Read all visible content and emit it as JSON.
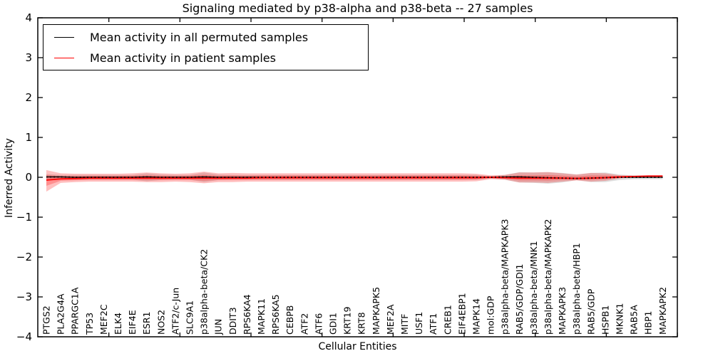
{
  "title": "Signaling mediated by p38-alpha and p38-beta -- 27 samples",
  "legend": {
    "items": [
      {
        "label": "Mean activity in all permuted samples",
        "color": "#000000"
      },
      {
        "label": "Mean activity in patient samples",
        "color": "#ff0000"
      }
    ]
  },
  "axes": {
    "xlabel": "Cellular Entities",
    "ylabel": "Inferred Activity",
    "yticklabels": [
      "4",
      "3",
      "2",
      "1",
      "0",
      "−1",
      "−2",
      "−3",
      "−4"
    ],
    "ylim": [
      -4,
      4
    ]
  },
  "chart_data": {
    "type": "line",
    "title": "Signaling mediated by p38-alpha and p38-beta -- 27 samples",
    "xlabel": "Cellular Entities",
    "ylabel": "Inferred Activity",
    "ylim": [
      -4,
      4
    ],
    "grid": false,
    "legend_position": "upper left",
    "categories": [
      "PTGS2",
      "PLA2G4A",
      "PPARGC1A",
      "TP53",
      "MEF2C",
      "ELK4",
      "EIF4E",
      "ESR1",
      "NOS2",
      "ATF2/c-Jun",
      "SLC9A1",
      "p38alpha-beta/CK2",
      "JUN",
      "DDIT3",
      "RPS6KA4",
      "MAPK11",
      "RPS6KA5",
      "CEBPB",
      "ATF2",
      "ATF6",
      "GDI1",
      "KRT19",
      "KRT8",
      "MAPKAPK5",
      "MEF2A",
      "MITF",
      "USF1",
      "ATF1",
      "CREB1",
      "EIF4EBP1",
      "MAPK14",
      "mol:GDP",
      "p38alpha-beta/MAPKAPK3",
      "RAB5/GDP/GDI1",
      "p38alpha-beta/MNK1",
      "p38alpha-beta/MAPKAPK2",
      "MAPKAPK3",
      "p38alpha-beta/HBP1",
      "RAB5/GDP",
      "HSPB1",
      "MKNK1",
      "RAB5A",
      "HBP1",
      "MAPKAPK2"
    ],
    "series": [
      {
        "name": "Mean activity in all permuted samples",
        "color": "#000000",
        "values": [
          0.01,
          0.01,
          0,
          0,
          0,
          0,
          0,
          0.01,
          0,
          0,
          0,
          0.01,
          0,
          0,
          0,
          0,
          0,
          0,
          0,
          0,
          0,
          0,
          0,
          0,
          0,
          0,
          0,
          0,
          0,
          0,
          0,
          0,
          0.01,
          0.01,
          0,
          -0.01,
          -0.02,
          -0.03,
          -0.02,
          -0.01,
          0,
          0,
          0,
          0
        ]
      },
      {
        "name": "Mean activity in patient samples",
        "color": "#ff0000",
        "values": [
          -0.07,
          -0.04,
          -0.03,
          -0.02,
          -0.02,
          -0.02,
          -0.02,
          -0.02,
          -0.02,
          -0.02,
          -0.02,
          -0.02,
          -0.02,
          -0.02,
          -0.02,
          -0.01,
          -0.01,
          -0.01,
          -0.01,
          -0.01,
          -0.01,
          -0.01,
          -0.01,
          -0.01,
          -0.01,
          -0.01,
          -0.01,
          -0.01,
          -0.01,
          -0.01,
          -0.01,
          0,
          -0.01,
          -0.02,
          -0.02,
          -0.02,
          -0.02,
          -0.03,
          -0.02,
          -0.01,
          0.01,
          0.02,
          0.03,
          0.03
        ]
      }
    ],
    "bands": [
      {
        "name": "permuted-sample-range",
        "color": "#999999",
        "opacity": 0.32,
        "upper": [
          0.08,
          0.06,
          0.06,
          0.06,
          0.06,
          0.06,
          0.06,
          0.1,
          0.07,
          0.06,
          0.06,
          0.12,
          0.07,
          0.06,
          0.06,
          0.06,
          0.06,
          0.06,
          0.06,
          0.06,
          0.06,
          0.06,
          0.06,
          0.06,
          0.06,
          0.06,
          0.06,
          0.06,
          0.06,
          0.06,
          0.06,
          0.03,
          0.06,
          0.13,
          0.12,
          0.13,
          0.11,
          0.07,
          0.11,
          0.12,
          0.07,
          0.05,
          0.05,
          0.05
        ],
        "lower": [
          -0.08,
          -0.06,
          -0.06,
          -0.06,
          -0.06,
          -0.06,
          -0.06,
          -0.1,
          -0.07,
          -0.06,
          -0.06,
          -0.12,
          -0.07,
          -0.06,
          -0.06,
          -0.06,
          -0.06,
          -0.06,
          -0.06,
          -0.06,
          -0.06,
          -0.06,
          -0.06,
          -0.06,
          -0.06,
          -0.06,
          -0.06,
          -0.06,
          -0.06,
          -0.06,
          -0.06,
          -0.03,
          -0.06,
          -0.13,
          -0.14,
          -0.16,
          -0.13,
          -0.07,
          -0.12,
          -0.12,
          -0.07,
          -0.05,
          -0.05,
          -0.05
        ]
      },
      {
        "name": "patient-sample-range",
        "color": "#ff0000",
        "opacity": 0.25,
        "upper": [
          0.18,
          0.1,
          0.09,
          0.09,
          0.09,
          0.09,
          0.1,
          0.12,
          0.1,
          0.09,
          0.1,
          0.14,
          0.1,
          0.11,
          0.1,
          0.1,
          0.1,
          0.1,
          0.1,
          0.1,
          0.1,
          0.1,
          0.1,
          0.1,
          0.1,
          0.1,
          0.1,
          0.1,
          0.1,
          0.1,
          0.09,
          0.05,
          0.06,
          0.12,
          0.12,
          0.13,
          0.1,
          0.07,
          0.11,
          0.1,
          0.05,
          0.04,
          0.04,
          0.05
        ],
        "lower": [
          -0.36,
          -0.14,
          -0.12,
          -0.11,
          -0.11,
          -0.11,
          -0.11,
          -0.12,
          -0.12,
          -0.11,
          -0.12,
          -0.15,
          -0.12,
          -0.12,
          -0.11,
          -0.11,
          -0.11,
          -0.11,
          -0.11,
          -0.11,
          -0.11,
          -0.11,
          -0.11,
          -0.11,
          -0.11,
          -0.11,
          -0.11,
          -0.11,
          -0.11,
          -0.11,
          -0.1,
          -0.05,
          -0.06,
          -0.13,
          -0.13,
          -0.14,
          -0.11,
          -0.08,
          -0.11,
          -0.09,
          -0.03,
          0.01,
          0.02,
          0.02
        ]
      }
    ]
  }
}
